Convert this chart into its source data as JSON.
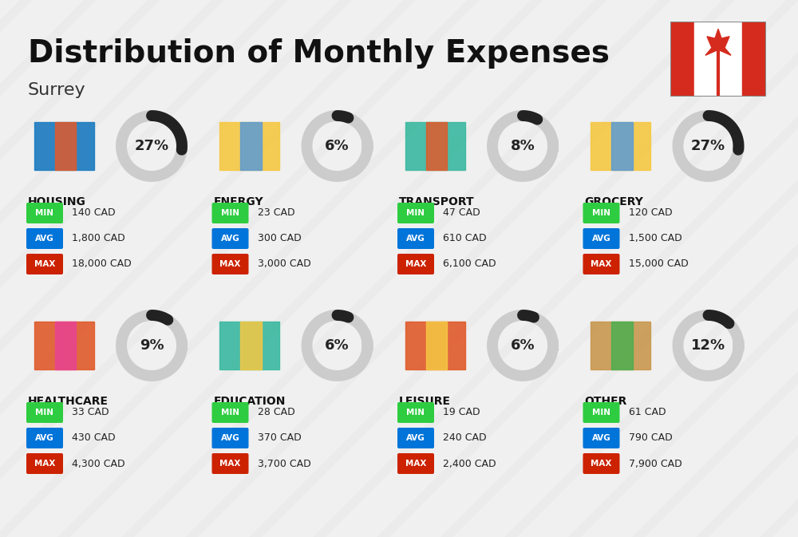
{
  "title": "Distribution of Monthly Expenses",
  "subtitle": "Surrey",
  "background_color": "#f0f0f0",
  "categories": [
    {
      "name": "HOUSING",
      "pct": 27,
      "min": "140 CAD",
      "avg": "1,800 CAD",
      "max": "18,000 CAD",
      "icon": "housing",
      "row": 0,
      "col": 0
    },
    {
      "name": "ENERGY",
      "pct": 6,
      "min": "23 CAD",
      "avg": "300 CAD",
      "max": "3,000 CAD",
      "icon": "energy",
      "row": 0,
      "col": 1
    },
    {
      "name": "TRANSPORT",
      "pct": 8,
      "min": "47 CAD",
      "avg": "610 CAD",
      "max": "6,100 CAD",
      "icon": "transport",
      "row": 0,
      "col": 2
    },
    {
      "name": "GROCERY",
      "pct": 27,
      "min": "120 CAD",
      "avg": "1,500 CAD",
      "max": "15,000 CAD",
      "icon": "grocery",
      "row": 0,
      "col": 3
    },
    {
      "name": "HEALTHCARE",
      "pct": 9,
      "min": "33 CAD",
      "avg": "430 CAD",
      "max": "4,300 CAD",
      "icon": "healthcare",
      "row": 1,
      "col": 0
    },
    {
      "name": "EDUCATION",
      "pct": 6,
      "min": "28 CAD",
      "avg": "370 CAD",
      "max": "3,700 CAD",
      "icon": "education",
      "row": 1,
      "col": 1
    },
    {
      "name": "LEISURE",
      "pct": 6,
      "min": "19 CAD",
      "avg": "240 CAD",
      "max": "2,400 CAD",
      "icon": "leisure",
      "row": 1,
      "col": 2
    },
    {
      "name": "OTHER",
      "pct": 12,
      "min": "61 CAD",
      "avg": "790 CAD",
      "max": "7,900 CAD",
      "icon": "other",
      "row": 1,
      "col": 3
    }
  ],
  "min_color": "#2ecc40",
  "avg_color": "#0074d9",
  "max_color": "#cc2200",
  "label_color": "#ffffff",
  "text_color": "#222222",
  "donut_bg_color": "#cccccc",
  "donut_fg_color": "#222222"
}
